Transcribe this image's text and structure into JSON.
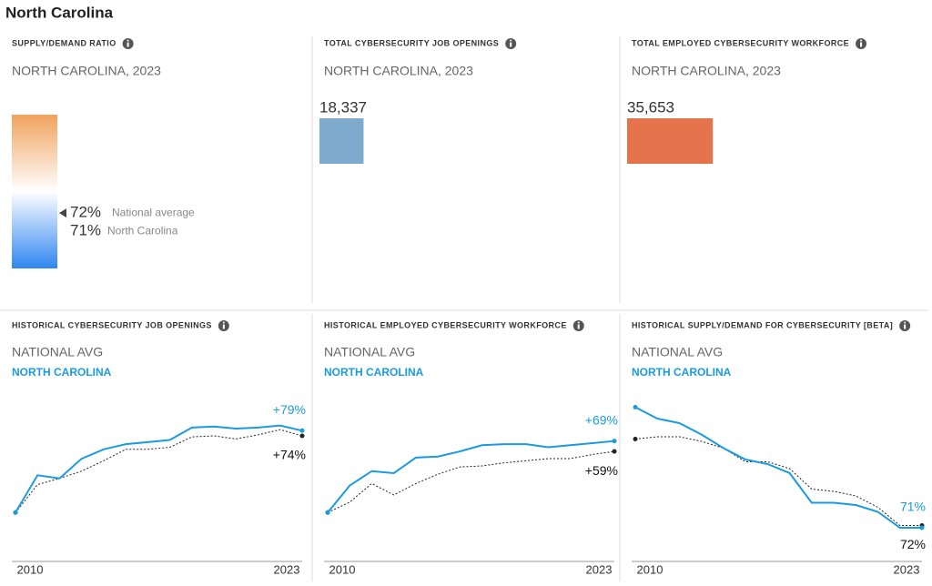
{
  "page_title": "North Carolina",
  "chart_data": [
    {
      "type": "gauge",
      "title": "SUPPLY/DEMAND RATIO",
      "subtitle": "NORTH CAROLINA, 2023",
      "ylim": [
        0,
        200
      ],
      "series": [
        {
          "name": "National average",
          "value": 72,
          "value_label": "72%"
        },
        {
          "name": "North Carolina",
          "value": 71,
          "value_label": "71%"
        }
      ],
      "colors": [
        "#f0a35e",
        "#ffffff",
        "#2f86f0"
      ]
    },
    {
      "type": "bar",
      "title": "TOTAL CYBERSECURITY JOB OPENINGS",
      "subtitle": "NORTH CAROLINA, 2023",
      "value": 18337,
      "value_label": "18,337",
      "color": "#7eaacd",
      "xlim": [
        0,
        70000
      ]
    },
    {
      "type": "bar",
      "title": "TOTAL EMPLOYED CYBERSECURITY WORKFORCE",
      "subtitle": "NORTH CAROLINA, 2023",
      "value": 35653,
      "value_label": "35,653",
      "color": "#e5744c",
      "xlim": [
        0,
        70000
      ]
    },
    {
      "type": "line",
      "title": "HISTORICAL CYBERSECURITY JOB OPENINGS",
      "x": [
        2010,
        2011,
        2012,
        2013,
        2014,
        2015,
        2016,
        2017,
        2018,
        2019,
        2020,
        2021,
        2022,
        2023
      ],
      "xlim": [
        2010,
        2023
      ],
      "xticks": [
        2010,
        2023
      ],
      "ylim": [
        -41,
        117
      ],
      "series": [
        {
          "name": "NATIONAL AVG",
          "color": "#222222",
          "values": [
            0,
            27,
            33,
            40,
            50,
            61,
            61,
            63,
            73,
            74,
            71,
            75,
            80,
            74
          ],
          "value_labels": [
            null,
            null,
            null,
            null,
            null,
            null,
            null,
            null,
            null,
            null,
            null,
            null,
            null,
            "+74%"
          ]
        },
        {
          "name": "NORTH CAROLINA",
          "color": "#1a9be0",
          "values": [
            0,
            36,
            33,
            52,
            61,
            66,
            68,
            70,
            82,
            83,
            81,
            82,
            84,
            79
          ],
          "value_labels": [
            null,
            null,
            null,
            null,
            null,
            null,
            null,
            null,
            null,
            null,
            null,
            null,
            null,
            "+79%"
          ]
        }
      ]
    },
    {
      "type": "line",
      "title": "HISTORICAL EMPLOYED CYBERSECURITY WORKFORCE",
      "x": [
        2010,
        2011,
        2012,
        2013,
        2014,
        2015,
        2016,
        2017,
        2018,
        2019,
        2020,
        2021,
        2022,
        2023
      ],
      "xlim": [
        2010,
        2023
      ],
      "xticks": [
        2010,
        2023
      ],
      "ylim": [
        -41,
        117
      ],
      "series": [
        {
          "name": "NATIONAL AVG",
          "color": "#222222",
          "values": [
            0,
            10,
            28,
            17,
            28,
            37,
            44,
            45,
            48,
            50,
            52,
            52,
            56,
            59
          ],
          "value_labels": [
            null,
            null,
            null,
            null,
            null,
            null,
            null,
            null,
            null,
            null,
            null,
            null,
            null,
            "+59%"
          ]
        },
        {
          "name": "NORTH CAROLINA",
          "color": "#1a9be0",
          "values": [
            0,
            26,
            40,
            38,
            53,
            54,
            59,
            65,
            66,
            66,
            63,
            65,
            67,
            69
          ],
          "value_labels": [
            null,
            null,
            null,
            null,
            null,
            null,
            null,
            null,
            null,
            null,
            null,
            null,
            null,
            "+69%"
          ]
        }
      ]
    },
    {
      "type": "line",
      "title": "HISTORICAL SUPPLY/DEMAND FOR CYBERSECURITY [BETA]",
      "x": [
        2010,
        2011,
        2012,
        2013,
        2014,
        2015,
        2016,
        2017,
        2018,
        2019,
        2020,
        2021,
        2022,
        2023
      ],
      "xlim": [
        2010,
        2023
      ],
      "xticks": [
        2010,
        2023
      ],
      "ylim": [
        59,
        131
      ],
      "series": [
        {
          "name": "NATIONAL AVG",
          "color": "#222222",
          "values": [
            110,
            111,
            111,
            109,
            106,
            100,
            100,
            97,
            88,
            87,
            85,
            80,
            72,
            72
          ],
          "value_labels": [
            null,
            null,
            null,
            null,
            null,
            null,
            null,
            null,
            null,
            null,
            null,
            null,
            null,
            "72%"
          ]
        },
        {
          "name": "NORTH CAROLINA",
          "color": "#1a9be0",
          "values": [
            124,
            119,
            117,
            112,
            106,
            101,
            99,
            95,
            82,
            82,
            81,
            78,
            71,
            71
          ],
          "value_labels": [
            null,
            null,
            null,
            null,
            null,
            null,
            null,
            null,
            null,
            null,
            null,
            null,
            null,
            "71%"
          ]
        }
      ]
    }
  ]
}
